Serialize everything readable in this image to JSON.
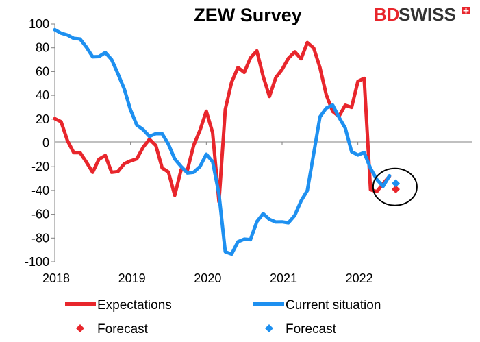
{
  "chart_data": {
    "type": "line",
    "title": "ZEW Survey",
    "xlabel": "",
    "ylabel": "",
    "x_ticks": [
      "2018",
      "2019",
      "2020",
      "2021",
      "2022"
    ],
    "y_ticks": [
      "100",
      "80",
      "60",
      "40",
      "20",
      "0",
      "-20",
      "-40",
      "-60",
      "-80",
      "-100"
    ],
    "ylim": [
      -100,
      100
    ],
    "xlim": [
      2018.0,
      2022.97
    ],
    "grid": false,
    "legend_position": "bottom",
    "series": [
      {
        "name": "Expectations",
        "color": "#e8262c",
        "x": [
          2018.0,
          2018.083,
          2018.167,
          2018.25,
          2018.333,
          2018.417,
          2018.5,
          2018.583,
          2018.667,
          2018.75,
          2018.833,
          2018.917,
          2019.0,
          2019.083,
          2019.167,
          2019.25,
          2019.333,
          2019.417,
          2019.5,
          2019.583,
          2019.667,
          2019.75,
          2019.833,
          2019.917,
          2020.0,
          2020.083,
          2020.167,
          2020.25,
          2020.333,
          2020.417,
          2020.5,
          2020.583,
          2020.667,
          2020.75,
          2020.833,
          2020.917,
          2021.0,
          2021.083,
          2021.167,
          2021.25,
          2021.333,
          2021.417,
          2021.5,
          2021.583,
          2021.667,
          2021.75,
          2021.833,
          2021.917,
          2022.0,
          2022.083,
          2022.167,
          2022.25,
          2022.333,
          2022.417
        ],
        "values": [
          20.4,
          17.8,
          1.9,
          -8.2,
          -8.2,
          -16.1,
          -24.7,
          -13.7,
          -10.6,
          -24.7,
          -24.1,
          -17.5,
          -15.1,
          -13.4,
          -3.6,
          3.1,
          -2.1,
          -21.1,
          -24.5,
          -44.1,
          -22.5,
          -22.8,
          -2.1,
          10.7,
          26.7,
          8.7,
          -49.5,
          28.2,
          51.0,
          63.4,
          59.3,
          71.5,
          77.4,
          56.1,
          39.0,
          55.0,
          61.8,
          71.2,
          76.6,
          70.7,
          84.4,
          79.8,
          63.3,
          40.4,
          26.5,
          22.3,
          31.7,
          29.9,
          51.7,
          54.3,
          -39.3,
          -41.0,
          -34.3,
          -28.0
        ]
      },
      {
        "name": "Current situation",
        "color": "#1e90f0",
        "x": [
          2018.0,
          2018.083,
          2018.167,
          2018.25,
          2018.333,
          2018.417,
          2018.5,
          2018.583,
          2018.667,
          2018.75,
          2018.833,
          2018.917,
          2019.0,
          2019.083,
          2019.167,
          2019.25,
          2019.333,
          2019.417,
          2019.5,
          2019.583,
          2019.667,
          2019.75,
          2019.833,
          2019.917,
          2020.0,
          2020.083,
          2020.167,
          2020.25,
          2020.333,
          2020.417,
          2020.5,
          2020.583,
          2020.667,
          2020.75,
          2020.833,
          2020.917,
          2021.0,
          2021.083,
          2021.167,
          2021.25,
          2021.333,
          2021.417,
          2021.5,
          2021.583,
          2021.667,
          2021.75,
          2021.833,
          2021.917,
          2022.0,
          2022.083,
          2022.167,
          2022.25,
          2022.333,
          2022.417
        ],
        "values": [
          95.2,
          92.3,
          90.7,
          87.9,
          87.4,
          80.6,
          72.4,
          72.6,
          76.0,
          70.1,
          58.2,
          45.3,
          27.6,
          15.0,
          11.1,
          5.5,
          7.8,
          7.8,
          -1.1,
          -13.5,
          -19.9,
          -25.3,
          -24.7,
          -19.9,
          -9.5,
          -15.7,
          -43.1,
          -91.5,
          -93.5,
          -83.1,
          -80.9,
          -81.3,
          -66.2,
          -59.5,
          -64.3,
          -66.5,
          -66.4,
          -67.2,
          -61.0,
          -48.8,
          -40.1,
          -9.1,
          21.9,
          29.3,
          31.9,
          21.6,
          12.5,
          -7.4,
          -10.2,
          -8.1,
          -21.4,
          -30.8,
          -36.5,
          -27.6
        ]
      },
      {
        "name": "Forecast",
        "color": "#e8262c",
        "type": "scatter",
        "x": [
          2022.5
        ],
        "values": [
          -39.0
        ]
      },
      {
        "name": "Forecast",
        "color": "#1e90f0",
        "type": "scatter",
        "x": [
          2022.5
        ],
        "values": [
          -34.0
        ]
      }
    ],
    "annotations": [
      {
        "type": "ellipse",
        "x": 2022.49,
        "y": -37.0
      }
    ]
  },
  "logo": {
    "text_bd": "BD",
    "text_swiss": "SWISS"
  },
  "colors": {
    "expectations": "#e8262c",
    "current": "#1e90f0",
    "logo_red": "#e8262c",
    "logo_dark": "#333333"
  }
}
